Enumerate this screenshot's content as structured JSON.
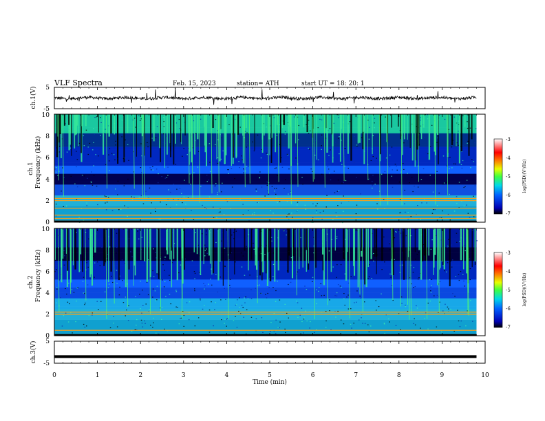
{
  "header": {
    "title": "VLF  Spectra",
    "date": "Feb. 15, 2023",
    "station": "station= ATH",
    "start": "start  UT  =    18: 20: 1"
  },
  "colors": {
    "spectrogram_low": "#00007a",
    "spectrogram_mid": "#1e6cff",
    "spectrogram_high": "#58ff52",
    "hum_line": "#f0a020",
    "colorbar": [
      "#000000",
      "#0000c8",
      "#0070ff",
      "#00e0e0",
      "#40ff40",
      "#ffff00",
      "#ff6000",
      "#ff0000",
      "#ffffff"
    ]
  },
  "chart_data": [
    {
      "type": "line",
      "name": "ch1-waveform",
      "ylabel": "ch.1(V)",
      "yticks": [
        "5",
        "-5"
      ],
      "ylim": [
        -5,
        5
      ],
      "xlim": [
        0,
        10
      ],
      "trace_range_min": [
        0,
        9.8
      ],
      "baseline_v": 0
    },
    {
      "type": "heatmap",
      "name": "ch1-spectrogram",
      "ylabel_channel": "ch.1",
      "ylabel": "Frequency  (kHz)",
      "yticks": [
        "10",
        "8",
        "6",
        "4",
        "2",
        "0"
      ],
      "ylim_khz": [
        0,
        10
      ],
      "xlim_min": [
        0,
        10
      ],
      "data_extent_min": [
        0,
        9.8
      ],
      "colorbar_label": "log(PSD)(V²/Hz)",
      "colorbar_ticks": [
        "-3",
        "-4",
        "-5",
        "-6",
        "-7"
      ],
      "colorbar_range": [
        -7,
        -3
      ],
      "hum_lines_khz": [
        0.1,
        0.35,
        0.65,
        1.3,
        2.0,
        2.2
      ]
    },
    {
      "type": "heatmap",
      "name": "ch2-spectrogram",
      "ylabel_channel": "ch.2",
      "ylabel": "Frequency  (kHz)",
      "yticks": [
        "10",
        "8",
        "6",
        "4",
        "2",
        "0"
      ],
      "ylim_khz": [
        0,
        10
      ],
      "xlim_min": [
        0,
        10
      ],
      "data_extent_min": [
        0,
        9.8
      ],
      "colorbar_label": "log(PSD)(V²/Hz)",
      "colorbar_ticks": [
        "-3",
        "-4",
        "-5",
        "-6",
        "-7"
      ],
      "colorbar_range": [
        -7,
        -3
      ],
      "hum_lines_khz": [
        0.1,
        0.5,
        2.0,
        2.2
      ]
    },
    {
      "type": "line",
      "name": "ch3-waveform",
      "ylabel": "ch.3(V)",
      "yticks": [
        "5",
        "-5"
      ],
      "ylim": [
        -5,
        5
      ],
      "xlim": [
        0,
        10
      ],
      "trace_range_min": [
        0,
        9.8
      ],
      "baseline_v": -2
    }
  ],
  "x_axis": {
    "label": "Time  (min)",
    "ticks": [
      "0",
      "1",
      "2",
      "3",
      "4",
      "5",
      "6",
      "7",
      "8",
      "9",
      "10"
    ]
  }
}
